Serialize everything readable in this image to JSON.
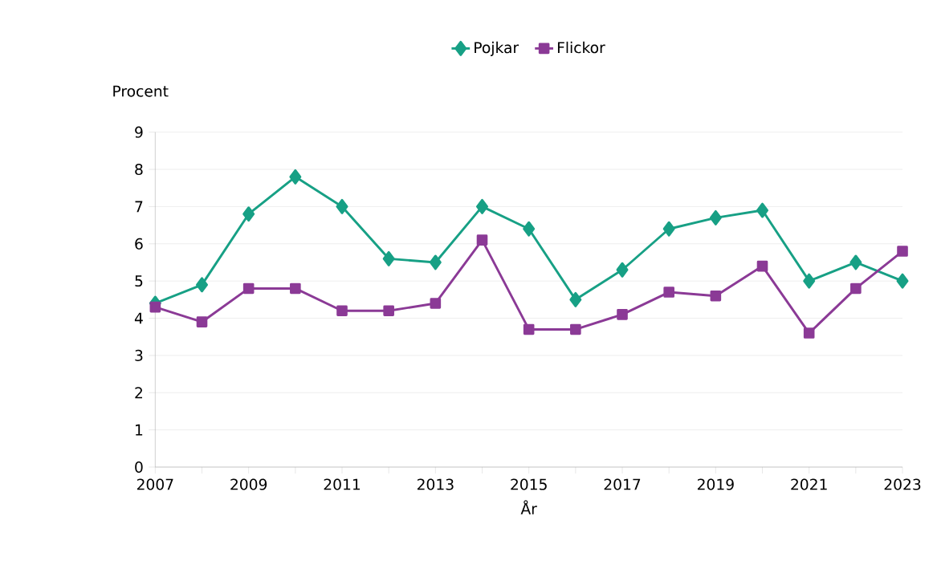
{
  "chart_data": {
    "type": "line",
    "ylabel": "Procent",
    "xlabel": "År",
    "x": [
      2007,
      2008,
      2009,
      2010,
      2011,
      2012,
      2013,
      2014,
      2015,
      2016,
      2017,
      2018,
      2019,
      2020,
      2021,
      2022,
      2023
    ],
    "series": [
      {
        "name": "Pojkar",
        "color": "#17a085",
        "marker": "diamond",
        "values": [
          4.4,
          4.9,
          6.8,
          7.8,
          7.0,
          5.6,
          5.5,
          7.0,
          6.4,
          4.5,
          5.3,
          6.4,
          6.7,
          6.9,
          5.0,
          5.5,
          5.0
        ]
      },
      {
        "name": "Flickor",
        "color": "#8b3a96",
        "marker": "square",
        "values": [
          4.3,
          3.9,
          4.8,
          4.8,
          4.2,
          4.2,
          4.4,
          6.1,
          3.7,
          3.7,
          4.1,
          4.7,
          4.6,
          5.4,
          3.6,
          4.8,
          5.8
        ]
      }
    ],
    "xlim": [
      2007,
      2023
    ],
    "xticks": [
      2007,
      {
        "value": 2008,
        "label": null
      },
      2009,
      {
        "value": 2010,
        "label": null
      },
      2011,
      {
        "value": 2012,
        "label": null
      },
      2013,
      {
        "value": 2014,
        "label": null
      },
      2015,
      {
        "value": 2016,
        "label": null
      },
      2017,
      {
        "value": 2018,
        "label": null
      },
      2019,
      {
        "value": 2020,
        "label": null
      },
      2021,
      {
        "value": 2022,
        "label": null
      },
      2023
    ],
    "ylim": [
      0,
      9
    ],
    "yticks": [
      0,
      1,
      2,
      3,
      4,
      5,
      6,
      7,
      8,
      9
    ],
    "grid": "y",
    "legend": "top",
    "line_style": "solid"
  }
}
